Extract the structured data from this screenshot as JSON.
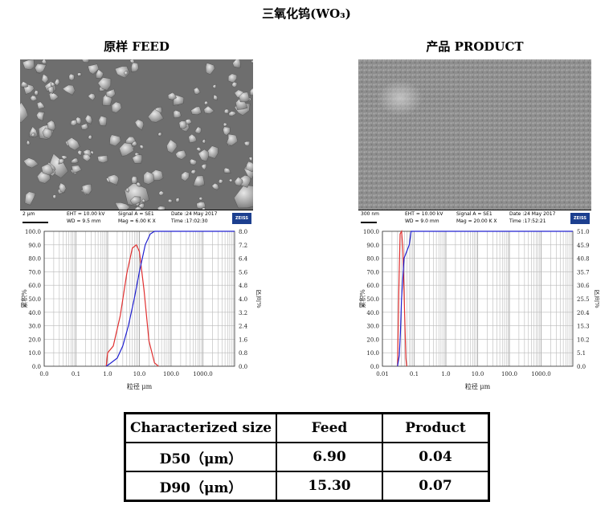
{
  "title": "三氧化钨(WO₃)",
  "feed": {
    "heading": "原样 FEED",
    "sem_info": {
      "scale": "2 µm",
      "eht": "EHT = 10.00 kV",
      "wd": "WD = 9.5 mm",
      "signal": "Signal A = SE1",
      "mag": "Mag =  6.00 K X",
      "date": "Date :24 May 2017",
      "time": "Time :17:02:30",
      "brand": "ZEISS"
    },
    "chart_data": {
      "type": "line",
      "xscale": "log",
      "xlim": [
        0.01,
        10000
      ],
      "xticks": [
        "0.0",
        "0.1",
        "1.0",
        "10.0",
        "100.0",
        "1000.0"
      ],
      "xlabel": "粒径 μm",
      "ylabel_left": "累积%",
      "ylabel_right": "区间%",
      "ylim_left": [
        0,
        100
      ],
      "yticks_left": [
        "0.0",
        "10.0",
        "20.0",
        "30.0",
        "40.0",
        "50.0",
        "60.0",
        "70.0",
        "80.0",
        "90.0",
        "100.0"
      ],
      "yticks_right": [
        "0.0",
        "0.8",
        "1.6",
        "2.4",
        "3.2",
        "4.0",
        "4.8",
        "5.6",
        "6.4",
        "7.2",
        "8.0"
      ],
      "ylim_right": [
        0,
        8.0
      ],
      "series": [
        {
          "axis": "right",
          "color": "#e03030",
          "points": [
            [
              0.9,
              0
            ],
            [
              1.0,
              0.8
            ],
            [
              1.5,
              1.2
            ],
            [
              2.5,
              3.0
            ],
            [
              4.0,
              5.5
            ],
            [
              6.0,
              7.0
            ],
            [
              8.0,
              7.2
            ],
            [
              10.0,
              6.8
            ],
            [
              14,
              4.5
            ],
            [
              20,
              1.5
            ],
            [
              30,
              0.2
            ],
            [
              40,
              0
            ]
          ]
        },
        {
          "axis": "left",
          "color": "#2020d0",
          "points": [
            [
              0.9,
              0
            ],
            [
              1.2,
              2
            ],
            [
              2.0,
              6
            ],
            [
              3.0,
              15
            ],
            [
              4.5,
              30
            ],
            [
              6.9,
              50
            ],
            [
              10,
              70
            ],
            [
              15.3,
              90
            ],
            [
              22,
              98
            ],
            [
              30,
              100
            ],
            [
              10000,
              100
            ]
          ]
        }
      ]
    }
  },
  "product": {
    "heading": "产品 PRODUCT",
    "sem_info": {
      "scale": "300 nm",
      "eht": "EHT = 10.00 kV",
      "wd": "WD = 9.0 mm",
      "signal": "Signal A = SE1",
      "mag": "Mag = 20.00 K X",
      "date": "Date :24 May 2017",
      "time": "Time :17:52:21",
      "brand": "ZEISS"
    },
    "chart_data": {
      "type": "line",
      "xscale": "log",
      "xlim": [
        0.01,
        10000
      ],
      "xticks": [
        "0.01",
        "0.1",
        "1.0",
        "10.0",
        "100.0",
        "1000.0"
      ],
      "xlabel": "粒径 μm",
      "ylabel_left": "累积%",
      "ylabel_right": "区间%",
      "ylim_left": [
        0,
        100
      ],
      "yticks_left": [
        "0.0",
        "10.0",
        "20.0",
        "30.0",
        "40.0",
        "50.0",
        "60.0",
        "70.0",
        "80.0",
        "90.0",
        "100.0"
      ],
      "yticks_right": [
        "0.0",
        "5.1",
        "10.2",
        "15.3",
        "20.4",
        "25.5",
        "30.6",
        "35.7",
        "40.8",
        "45.9",
        "51.0"
      ],
      "ylim_right": [
        0,
        51.0
      ],
      "series": [
        {
          "axis": "right",
          "color": "#e03030",
          "points": [
            [
              0.03,
              0
            ],
            [
              0.033,
              30
            ],
            [
              0.036,
              50
            ],
            [
              0.04,
              51
            ],
            [
              0.044,
              45
            ],
            [
              0.05,
              20
            ],
            [
              0.055,
              3
            ],
            [
              0.058,
              0
            ]
          ]
        },
        {
          "axis": "left",
          "color": "#2020d0",
          "points": [
            [
              0.03,
              0
            ],
            [
              0.034,
              8
            ],
            [
              0.037,
              25
            ],
            [
              0.04,
              50
            ],
            [
              0.048,
              80
            ],
            [
              0.07,
              90
            ],
            [
              0.08,
              100
            ],
            [
              10000,
              100
            ]
          ]
        }
      ]
    }
  },
  "table": {
    "headers": [
      "Characterized size",
      "Feed",
      "Product"
    ],
    "rows": [
      [
        "D50（μm）",
        "6.90",
        "0.04"
      ],
      [
        "D90（μm）",
        "15.30",
        "0.07"
      ]
    ]
  }
}
